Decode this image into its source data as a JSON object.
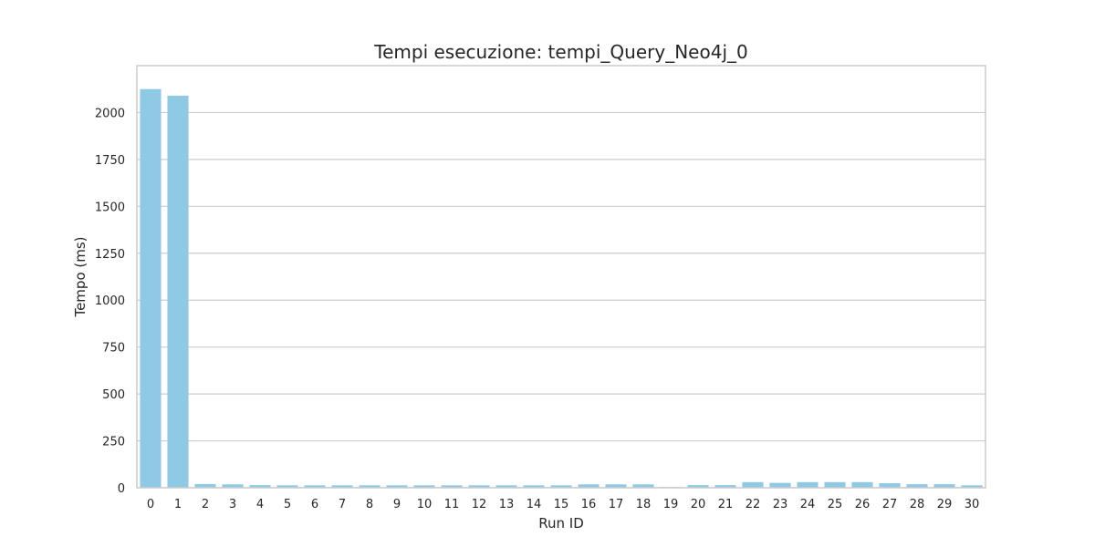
{
  "chart_data": {
    "type": "bar",
    "title": "Tempi esecuzione: tempi_Query_Neo4j_0",
    "xlabel": "Run ID",
    "ylabel": "Tempo (ms)",
    "categories": [
      "0",
      "1",
      "2",
      "3",
      "4",
      "5",
      "6",
      "7",
      "8",
      "9",
      "10",
      "11",
      "12",
      "13",
      "14",
      "15",
      "16",
      "17",
      "18",
      "19",
      "20",
      "21",
      "22",
      "23",
      "24",
      "25",
      "26",
      "27",
      "28",
      "29",
      "30"
    ],
    "values": [
      2125,
      2090,
      20,
      18,
      14,
      13,
      13,
      13,
      13,
      13,
      13,
      13,
      13,
      13,
      13,
      13,
      18,
      18,
      18,
      4,
      14,
      14,
      30,
      26,
      30,
      30,
      30,
      24,
      19,
      19,
      13
    ],
    "ylim": [
      0,
      2250
    ],
    "yticks": [
      0,
      250,
      500,
      750,
      1000,
      1250,
      1500,
      1750,
      2000
    ],
    "grid": true,
    "bar_color": "#8ecae6"
  }
}
